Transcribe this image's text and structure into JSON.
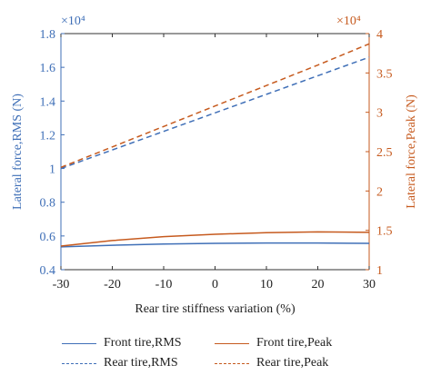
{
  "chart_data": {
    "type": "line",
    "title": "",
    "xlabel": "Rear tire stiffness variation (%)",
    "x": [
      -30,
      -20,
      -10,
      0,
      10,
      20,
      30
    ],
    "xlim": [
      -30,
      30
    ],
    "xticks": [
      "-30",
      "-20",
      "-10",
      "0",
      "10",
      "20",
      "30"
    ],
    "ylabel_left": "Lateral force,RMS (N)",
    "ylim_left": [
      0.4,
      1.8
    ],
    "yticks_left": [
      "0.4",
      "0.6",
      "0.8",
      "1",
      "1.2",
      "1.4",
      "1.6",
      "1.8"
    ],
    "yscale_left": "×10⁴",
    "ylabel_right": "Lateral force,Peak (N)",
    "ylim_right": [
      1,
      4
    ],
    "yticks_right": [
      "1",
      "1.5",
      "2",
      "2.5",
      "3",
      "3.5",
      "4"
    ],
    "yscale_right": "×10⁴",
    "grid": false,
    "legend_position": "bottom",
    "series": [
      {
        "name": "Front tire,RMS",
        "axis": "left",
        "style": "solid",
        "color": "#3f6fb7",
        "values": [
          0.535,
          0.545,
          0.552,
          0.556,
          0.558,
          0.558,
          0.556
        ]
      },
      {
        "name": "Rear tire,RMS",
        "axis": "left",
        "style": "dashed",
        "color": "#3f6fb7",
        "values": [
          1.0,
          1.11,
          1.22,
          1.33,
          1.44,
          1.55,
          1.66
        ]
      },
      {
        "name": "Front tire,Peak",
        "axis": "right",
        "style": "solid",
        "color": "#c65a1e",
        "values": [
          1.3,
          1.37,
          1.42,
          1.45,
          1.47,
          1.48,
          1.475
        ]
      },
      {
        "name": "Rear tire,Peak",
        "axis": "right",
        "style": "dashed",
        "color": "#c65a1e",
        "values": [
          2.3,
          2.56,
          2.82,
          3.08,
          3.34,
          3.6,
          3.87
        ]
      }
    ]
  }
}
